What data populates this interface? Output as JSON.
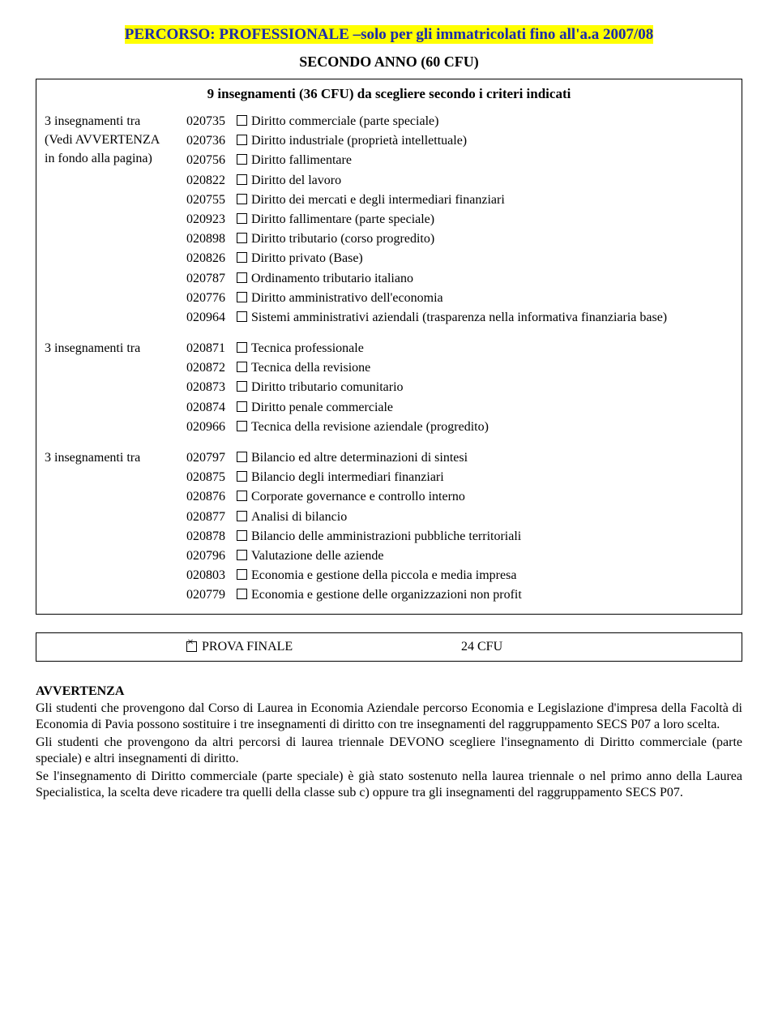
{
  "header": {
    "title": "PERCORSO: PROFESSIONALE –solo per gli immatricolati fino all'a.a 2007/08",
    "subtitle": "SECONDO ANNO (60 CFU)"
  },
  "box": {
    "intro": "9 insegnamenti (36 CFU) da scegliere secondo i criteri indicati",
    "sections": [
      {
        "left": [
          "3 insegnamenti tra",
          "(Vedi AVVERTENZA",
          "in fondo alla pagina)"
        ],
        "items": [
          {
            "code": "020735",
            "label": "Diritto commerciale (parte speciale)"
          },
          {
            "code": "020736",
            "label": "Diritto industriale (proprietà intellettuale)"
          },
          {
            "code": "020756",
            "label": "Diritto fallimentare"
          },
          {
            "code": "020822",
            "label": "Diritto del lavoro"
          },
          {
            "code": "020755",
            "label": "Diritto dei mercati e degli intermediari finanziari"
          },
          {
            "code": "020923",
            "label": "Diritto fallimentare (parte speciale)"
          },
          {
            "code": "020898",
            "label": "Diritto tributario (corso progredito)"
          },
          {
            "code": "020826",
            "label": "Diritto privato (Base)"
          },
          {
            "code": "020787",
            "label": "Ordinamento tributario italiano"
          },
          {
            "code": "020776",
            "label": "Diritto amministrativo dell'economia"
          },
          {
            "code": "020964",
            "label": "Sistemi amministrativi aziendali (trasparenza nella informativa finanziaria base)"
          }
        ]
      },
      {
        "left": [
          "3 insegnamenti tra"
        ],
        "items": [
          {
            "code": "020871",
            "label": "Tecnica professionale"
          },
          {
            "code": "020872",
            "label": "Tecnica della revisione"
          },
          {
            "code": "020873",
            "label": "Diritto tributario comunitario"
          },
          {
            "code": "020874",
            "label": "Diritto penale commerciale"
          },
          {
            "code": "020966",
            "label": "Tecnica della revisione aziendale (progredito)"
          }
        ]
      },
      {
        "left": [
          "3 insegnamenti tra"
        ],
        "items": [
          {
            "code": "020797",
            "label": "Bilancio ed altre determinazioni di sintesi"
          },
          {
            "code": "020875",
            "label": "Bilancio degli intermediari finanziari"
          },
          {
            "code": "020876",
            "label": "Corporate governance e controllo interno"
          },
          {
            "code": "020877",
            "label": "Analisi di bilancio"
          },
          {
            "code": "020878",
            "label": "Bilancio delle amministrazioni pubbliche territoriali"
          },
          {
            "code": "020796",
            "label": "Valutazione delle aziende"
          },
          {
            "code": "020803",
            "label": "Economia e gestione della piccola e media impresa"
          },
          {
            "code": "020779",
            "label": "Economia e gestione delle organizzazioni non profit"
          }
        ]
      }
    ]
  },
  "prova": {
    "checked": true,
    "label": "PROVA FINALE",
    "cfu": "24 CFU"
  },
  "avvertenza": {
    "title": "AVVERTENZA",
    "p1": "Gli studenti che provengono dal Corso di Laurea in Economia Aziendale percorso Economia e Legislazione d'impresa della Facoltà di Economia di Pavia possono sostituire i tre insegnamenti di diritto con tre insegnamenti del raggruppamento SECS P07 a loro scelta.",
    "p2": "Gli studenti che provengono da altri percorsi di laurea triennale DEVONO scegliere l'insegnamento di Diritto commerciale (parte speciale) e altri insegnamenti di diritto.",
    "p3": "Se l'insegnamento di Diritto commerciale (parte speciale) è già stato sostenuto nella laurea triennale o nel primo anno della Laurea Specialistica, la scelta deve ricadere tra quelli della classe sub c) oppure tra gli insegnamenti del raggruppamento SECS P07."
  }
}
